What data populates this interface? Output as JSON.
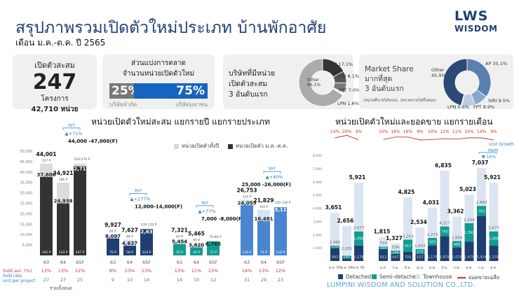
{
  "header": {
    "title": "สรุปภาพรวมเปิดตัวใหม่ประเภท บ้านพักอาศัย",
    "subtitle": "เดือน ม.ค.-ต.ค. ปี 2565",
    "logo_line1": "LWS",
    "logo_line2": "WISDOM"
  },
  "card_total": {
    "label": "เปิดตัวสะสม",
    "value": "247",
    "unit": "โครงการ",
    "units_text": "42,710 หน่วย"
  },
  "card_share": {
    "title1": "ส่วนแบ่งการตลาด",
    "title2": "จำนวนหน่วยเปิดตัวใหม่",
    "private_pct": "25%",
    "public_pct": "75%",
    "private_label": "บริษัทจำกัด",
    "public_label": "บริษัทมหาชน",
    "private_value": 25,
    "public_value": 75
  },
  "card_top3_units": {
    "line1": "บริษัทที่มีหน่วย",
    "line2": "เปิดตัวสะสม",
    "line3": "3 อันดับแรก",
    "slices": [
      {
        "name": "AP",
        "label": "AP 17.1%",
        "value": 17.1,
        "color": "#333333"
      },
      {
        "name": "SIRI",
        "label": "SIRI 8.1%",
        "value": 8.1,
        "color": "#555555"
      },
      {
        "name": "FPT",
        "label": "FPT 7.0%",
        "value": 7.0,
        "color": "#7a7a7a"
      },
      {
        "name": "LPN",
        "label": "LPN 1.6%",
        "value": 1.6,
        "color": "#ffffff"
      },
      {
        "name": "Other",
        "label": "Other 66.1%",
        "value": 66.1,
        "color": "#ababab"
      }
    ]
  },
  "card_market_share": {
    "line1": "Market Share",
    "line2": "มากที่สุด",
    "line3": "3 อันดับแรก",
    "note": "(หน่วยที่ขายได้ของบ. /หน่วยขายได้ทั้งหมด)",
    "slices": [
      {
        "name": "AP",
        "label": "AP 35.1%",
        "value": 35.1,
        "color": "#5b7fb0"
      },
      {
        "name": "SIRI",
        "label": "SIRI 9.5%",
        "value": 9.5,
        "color": "#8aa6cc"
      },
      {
        "name": "FPT",
        "label": "FPT 8.9%",
        "value": 8.9,
        "color": "#bccbe0"
      },
      {
        "name": "LPN",
        "label": "LPN 0.6%",
        "value": 0.6,
        "color": "#ffffff"
      },
      {
        "name": "Other",
        "label": "Other 45.9%",
        "value": 45.9,
        "color": "#2c4a75"
      }
    ]
  },
  "chart_data": [
    {
      "type": "bar",
      "title": "หน่วยเปิดตัวใหม่สะสม แยกรายปี แยกรายประเภท",
      "ylim": [
        0,
        50000
      ],
      "yticks": [
        "-",
        "5,000",
        "10,000",
        "15,000",
        "20,000",
        "25,000",
        "30,000",
        "35,000",
        "40,000",
        "45,000",
        "50,000"
      ],
      "legend": [
        {
          "label": "หน่วยเปิดตัวทั้งปี",
          "color": "#d9d9d9"
        },
        {
          "label": "หน่วยเปิดตัว ม.ค.-ต.ค.",
          "color": "#333333"
        }
      ],
      "row_labels": {
        "sold_avr": "Sold avr. (%)",
        "sold_rate": "Sold rate unit per project"
      },
      "groups": [
        {
          "name": "รวมทั้งหมด",
          "color": "#333333",
          "yoy": "YoY",
          "yoy_value": "+71%",
          "bars": [
            {
              "x": "63",
              "full": 44001,
              "full_label": "44,001",
              "full_p": "227 P",
              "ytd": 37606,
              "ytd_label": "37,606",
              "ytd_p": "192 P",
              "sold_avr": "13%",
              "sold_rate": "27"
            },
            {
              "x": "64",
              "full": 34921,
              "full_label": "34,921",
              "full_p": "186 P",
              "ytd": 24938,
              "ytd_label": "24,938",
              "ytd_p": "133 P",
              "sold_avr": "13%",
              "sold_rate": "27"
            },
            {
              "x": "65F",
              "full": 44000,
              "full_label": "44,000 -47,000(F)",
              "full_p": "250-270 P",
              "ytd": 42710,
              "ytd_label": "42,710",
              "ytd_p": "247 P",
              "sold_avr": "12%",
              "sold_rate": "25"
            }
          ]
        },
        {
          "name": "detached",
          "color": "#1f3f73",
          "yoy": "YoY",
          "yoy_value": "+177%",
          "bars": [
            {
              "x": "63",
              "full": 9927,
              "full_label": "9,927",
              "full_p": "91 P",
              "ytd": 8097,
              "ytd_label": "8,097",
              "ytd_p": "75 P",
              "sold_avr": "8%",
              "sold_rate": "9"
            },
            {
              "x": "64",
              "full": 7627,
              "full_label": "7,627",
              "full_p": "84 P",
              "ytd": 4637,
              "ytd_label": "4,637",
              "ytd_p": "58 P",
              "sold_avr": "13%",
              "sold_rate": "10"
            },
            {
              "x": "65F",
              "full": 12634,
              "full_label": "12,000-14,000(F)",
              "full_p": "120-130 P",
              "ytd": 12634,
              "ytd_label": "12,634",
              "ytd_p": "124 P",
              "sold_avr": "13%",
              "sold_rate": "14"
            }
          ]
        },
        {
          "name": "semi-detached",
          "color": "#139b8f",
          "yoy": "YoY",
          "yoy_value": "+77%",
          "bars": [
            {
              "x": "63",
              "full": 7321,
              "full_label": "7,321",
              "full_p": "63 P",
              "ytd": 5454,
              "ytd_label": "5,454",
              "ytd_p": "50 P",
              "sold_avr": "13%",
              "sold_rate": "14"
            },
            {
              "x": "64",
              "full": 5465,
              "full_label": "5,465",
              "full_p": "60 P",
              "ytd": 3820,
              "ytd_label": "3,820",
              "ytd_p": "44 P",
              "sold_avr": "11%",
              "sold_rate": "10"
            },
            {
              "x": "65F",
              "full": 6765,
              "full_label": "7,000 -8,000(F)",
              "full_p": "70-80 P",
              "ytd": 6765,
              "ytd_label": "6,765",
              "ytd_p": "72 P",
              "sold_avr": "13%",
              "sold_rate": "12"
            }
          ]
        },
        {
          "name": "townhouse",
          "color": "#4a86cf",
          "yoy": "YoY",
          "yoy_value": "+40%",
          "bars": [
            {
              "x": "63",
              "full": 26753,
              "full_label": "26,753",
              "full_p": "124 P",
              "ytd": 24055,
              "ytd_label": "24,055",
              "ytd_p": "110 P",
              "sold_avr": "14%",
              "sold_rate": "31"
            },
            {
              "x": "64",
              "full": 21829,
              "full_label": "21,829",
              "full_p": "102 P",
              "ytd": 16481,
              "ytd_label": "16,481",
              "ytd_p": "72 P",
              "sold_avr": "13%",
              "sold_rate": "29"
            },
            {
              "x": "65F",
              "full": 23111,
              "full_label": "25,000 -26,000(F)",
              "full_p": "120-130 P",
              "ytd": 23111,
              "ytd_label": "23,111",
              "ytd_p": "118 P",
              "sold_avr": "12%",
              "sold_rate": "23"
            }
          ]
        }
      ]
    },
    {
      "type": "bar",
      "stacked": true,
      "title": "หน่วยเปิดตัวใหม่และยอดขาย แยกรายเดือน",
      "ylim": [
        0,
        8000
      ],
      "yticks": [
        "-",
        "1,000",
        "2,000",
        "3,000",
        "4,000",
        "5,000",
        "6,000",
        "7,000",
        "8,000"
      ],
      "series_colors": {
        "detached": "#1f3f73",
        "semi": "#139b8f",
        "town": "#dbe5f1",
        "sold": "#c0392b"
      },
      "legend": [
        "Detached",
        "Semi-detached",
        "Townhouse",
        "ยอดขายเฉลี่ย"
      ],
      "annotation": {
        "label1": "Unit Growth",
        "label2": "MoM",
        "value": "-16%"
      },
      "months": [
        {
          "x": "ต.ค. 63",
          "total": "3,651",
          "d": 992,
          "s": 174,
          "t": 2485,
          "dl": "992",
          "sl": "174",
          "tl": "2,485",
          "sold": "14%",
          "sold_v": 14
        },
        {
          "x": "ต.ค. 64",
          "total": "2,656",
          "d": 190,
          "s": 215,
          "t": 2251,
          "dl": "190",
          "sl": "215",
          "tl": "2,251",
          "sold": "20%",
          "sold_v": 20
        },
        {
          "x": "ต.ค. 65",
          "total": "5,921",
          "d": 1178,
          "s": 1066,
          "t": 3677,
          "dl": "1,178",
          "sl": "1,066",
          "tl": "3,677",
          "sold": "9%",
          "sold_v": 9
        },
        {
          "x": "ม.ค.",
          "total": "1,815",
          "d": 912,
          "s": 193,
          "t": 710,
          "dl": "912",
          "sl": "193",
          "tl": "710",
          "sold": "10%",
          "sold_v": 10
        },
        {
          "x": "ก.พ.",
          "total": "1,327",
          "d": 547,
          "s": 246,
          "t": 534,
          "dl": "547",
          "sl": "246",
          "tl": "534",
          "sold": "16%",
          "sold_v": 16
        },
        {
          "x": "มี.ค.",
          "total": "4,825",
          "d": 705,
          "s": 917,
          "t": 3203,
          "dl": "705",
          "sl": "917",
          "tl": "3,203",
          "sold": "16%",
          "sold_v": 16
        },
        {
          "x": "เม.ย.",
          "total": "2,534",
          "d": 527,
          "s": 375,
          "t": 1632,
          "dl": "527",
          "sl": "375",
          "tl": "1,632",
          "sold": "9%",
          "sold_v": 9
        },
        {
          "x": "พ.ค.",
          "total": "4,031",
          "d": 1175,
          "s": 583,
          "t": 2273,
          "dl": "1,175",
          "sl": "583",
          "tl": "2,273",
          "sold": "10%",
          "sold_v": 10
        },
        {
          "x": "มิ.ย.",
          "total": "6,835",
          "d": 1878,
          "s": 740,
          "t": 4217,
          "dl": "1,878",
          "sl": "740",
          "tl": "4,217",
          "sold": "12%",
          "sold_v": 12
        },
        {
          "x": "ก.ค.",
          "total": "3,362",
          "d": 1025,
          "s": 488,
          "t": 1849,
          "dl": "1,025",
          "sl": "488",
          "tl": "1,849",
          "sold": "11%",
          "sold_v": 11
        },
        {
          "x": "ส.ค.",
          "total": "5,023",
          "d": 1475,
          "s": 1392,
          "t": 2156,
          "dl": "1,475",
          "sl": "1,392",
          "tl": "2,156",
          "sold": "14%",
          "sold_v": 14
        },
        {
          "x": "ก.ย.",
          "total": "7,037",
          "d": 3414,
          "s": 763,
          "t": 2860,
          "dl": "3,414",
          "sl": "763",
          "tl": "2,860",
          "sold": "14%",
          "sold_v": 14
        },
        {
          "x": "ต.ค.",
          "total": "5,921",
          "d": 1178,
          "s": 1066,
          "t": 3677,
          "dl": "1,178",
          "sl": "1,066",
          "tl": "3,677",
          "sold": "9%",
          "sold_v": 9
        }
      ]
    }
  ],
  "footer": "LUMPINI WISDOM AND SOLUTION CO.,LTD."
}
